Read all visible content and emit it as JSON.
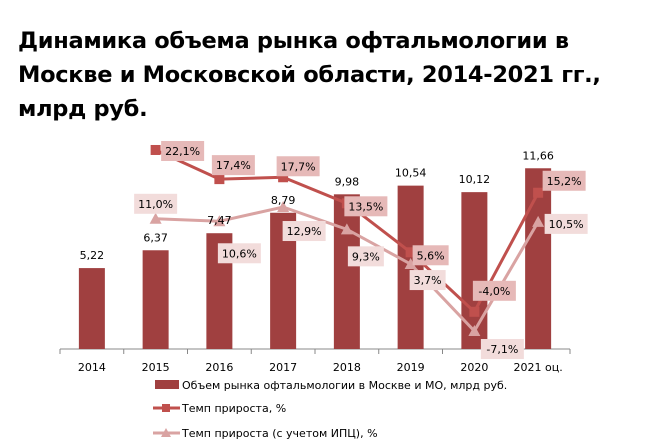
{
  "chart_data": {
    "type": "bar",
    "title": "Динамика объема рынка офтальмологии в Москве и Московской области, 2014-2021 гг., млрд руб.",
    "categories": [
      "2014",
      "2015",
      "2016",
      "2017",
      "2018",
      "2019",
      "2020",
      "2021 оц."
    ],
    "ylim": [
      0,
      14
    ],
    "y2lim": [
      -10,
      25
    ],
    "grid": false,
    "legend_placement": "bottom",
    "series": [
      {
        "name": "Объем рынка офтальмологии в Москве и МО, млрд руб.",
        "kind": "bar",
        "axis": "primary",
        "color": "#a04040",
        "values": [
          5.22,
          6.37,
          7.47,
          8.79,
          9.98,
          10.54,
          10.12,
          11.66
        ],
        "labels": [
          "5,22",
          "6,37",
          "7,47",
          "8,79",
          "9,98",
          "10,54",
          "10,12",
          "11,66"
        ]
      },
      {
        "name": "Темп прироста, %",
        "kind": "line",
        "marker": "square",
        "axis": "secondary",
        "color": "#c0504d",
        "label_bg": "#e6b9b8",
        "values": [
          null,
          22.1,
          17.4,
          17.7,
          13.5,
          5.6,
          -4.0,
          15.2
        ],
        "labels": [
          null,
          "22,1%",
          "17,4%",
          "17,7%",
          "13,5%",
          "5,6%",
          "-4,0%",
          "15,2%"
        ]
      },
      {
        "name": "Темп прироста (с учетом ИПЦ), %",
        "kind": "line",
        "marker": "triangle",
        "axis": "secondary",
        "color": "#d9a3a2",
        "label_bg": "#f2dcdb",
        "values": [
          null,
          11.0,
          10.6,
          12.9,
          9.3,
          3.7,
          -7.1,
          10.5
        ],
        "labels": [
          null,
          "11,0%",
          "10,6%",
          "12,9%",
          "9,3%",
          "3,7%",
          "-7,1%",
          "10,5%"
        ]
      }
    ]
  }
}
